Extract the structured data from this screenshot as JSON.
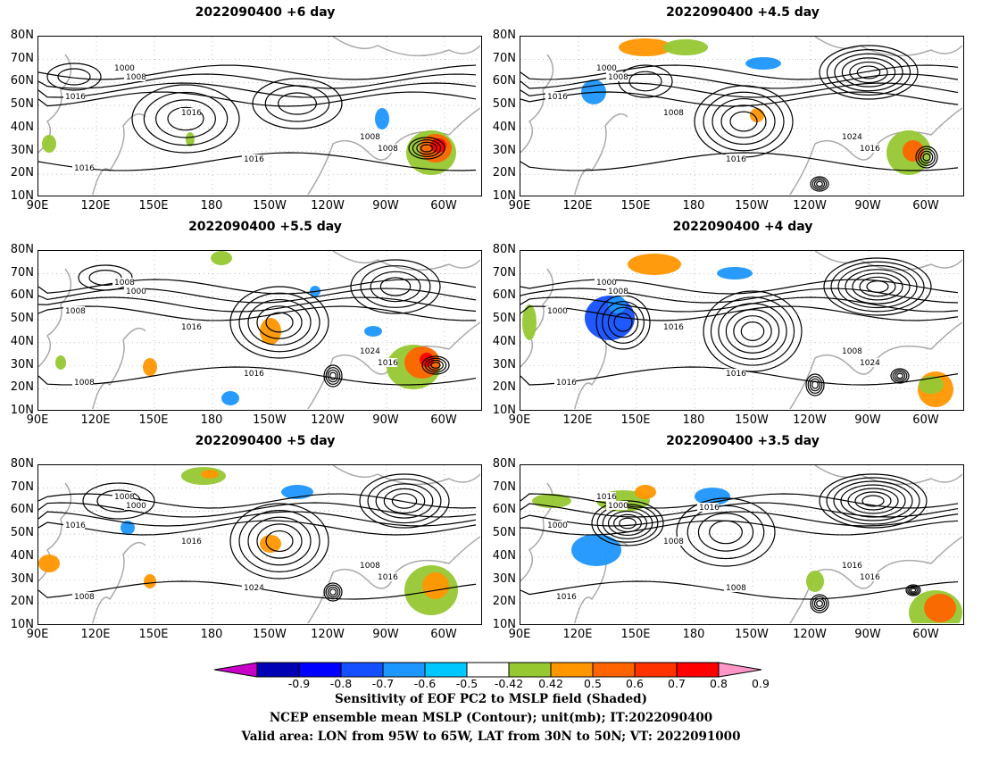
{
  "panels": [
    {
      "title": "2022090400  +6 day"
    },
    {
      "title": "2022090400  +4.5  day"
    },
    {
      "title": "2022090400  +5.5 day"
    },
    {
      "title": "2022090400  +4 day"
    },
    {
      "title": "2022090400  +5 day"
    },
    {
      "title": "2022090400  +3.5 day"
    }
  ],
  "axes": {
    "lat_labels": [
      "80N",
      "70N",
      "60N",
      "50N",
      "40N",
      "30N",
      "20N",
      "10N"
    ],
    "lon_labels": [
      "90E",
      "120E",
      "150E",
      "180",
      "150W",
      "120W",
      "90W",
      "60W"
    ]
  },
  "contour_labels": {
    "p0": [
      "1000",
      "1008",
      "1016",
      "1016",
      "1016",
      "1008",
      "1008",
      "1016"
    ],
    "p1": [
      "1000",
      "1008",
      "1016",
      "1008",
      "1016",
      "1024",
      "1016"
    ],
    "p2": [
      "1008",
      "1000",
      "1008",
      "1016",
      "1016",
      "1024",
      "1016",
      "1008"
    ],
    "p3": [
      "1000",
      "1008",
      "1000",
      "1016",
      "1016",
      "1008",
      "1024",
      "1016"
    ],
    "p4": [
      "1008",
      "1000",
      "1016",
      "1016",
      "1024",
      "1008",
      "1016",
      "1008"
    ],
    "p5": [
      "1016",
      "1000",
      "1000",
      "1008",
      "1008",
      "1016",
      "1016",
      "1016",
      "1016"
    ]
  },
  "colorbar": {
    "labels": [
      "-0.9",
      "-0.8",
      "-0.7",
      "-0.6",
      "-0.5",
      "-0.42",
      "0.42",
      "0.5",
      "0.6",
      "0.7",
      "0.8",
      "0.9"
    ],
    "colors": [
      "#0000b4",
      "#0000ff",
      "#1450ff",
      "#1e96ff",
      "#00c8ff",
      "#ffffff",
      "#96c832",
      "#ff9600",
      "#ff6400",
      "#ff3200",
      "#ff0000"
    ],
    "left_tip": "#c800c8",
    "right_tip": "#ff96c8"
  },
  "footer": {
    "line1": "Sensitivity of EOF PC2 to MSLP field (Shaded)",
    "line2": "NCEP ensemble mean MSLP (Contour); unit(mb); IT:2022090400",
    "line3": "Valid area: LON from 95W to 65W, LAT from 30N to 50N; VT: 2022091000"
  }
}
